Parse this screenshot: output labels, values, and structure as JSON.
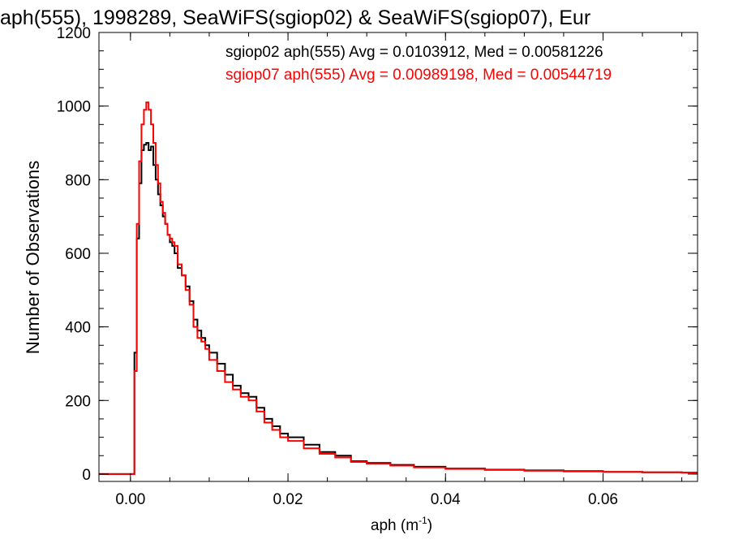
{
  "chart_data": {
    "type": "line",
    "title": "aph(555), 1998289, SeaWiFS(sgiop02) & SeaWiFS(sgiop07), Eur",
    "xlabel": "aph (m",
    "xlabel_sup": "-1",
    "xlabel_close": ")",
    "ylabel": "Number of Observations",
    "xlim": [
      -0.004,
      0.072
    ],
    "ylim": [
      -20,
      1200
    ],
    "xticks": [
      0.0,
      0.02,
      0.04,
      0.06
    ],
    "xtick_labels": [
      "0.00",
      "0.02",
      "0.04",
      "0.06"
    ],
    "yticks": [
      0,
      200,
      400,
      600,
      800,
      1000,
      1200
    ],
    "ytick_labels": [
      "0",
      "200",
      "400",
      "600",
      "800",
      "1000",
      "1200"
    ],
    "grid": false,
    "legend_position": "top-right",
    "series": [
      {
        "name": "sgiop02 aph(555) Avg = 0.0103912, Med = 0.00581226",
        "color": "#000000",
        "x": [
          -0.004,
          0.0,
          0.0005,
          0.0008,
          0.0011,
          0.0014,
          0.0017,
          0.002,
          0.0023,
          0.0026,
          0.0029,
          0.0032,
          0.0035,
          0.0038,
          0.0041,
          0.0044,
          0.0047,
          0.005,
          0.0053,
          0.0056,
          0.006,
          0.0065,
          0.007,
          0.0075,
          0.008,
          0.0085,
          0.009,
          0.0095,
          0.01,
          0.011,
          0.012,
          0.013,
          0.014,
          0.015,
          0.016,
          0.017,
          0.018,
          0.019,
          0.02,
          0.022,
          0.024,
          0.026,
          0.028,
          0.03,
          0.033,
          0.036,
          0.04,
          0.045,
          0.05,
          0.055,
          0.06,
          0.065,
          0.07,
          0.072
        ],
        "y": [
          0,
          0,
          330,
          640,
          790,
          880,
          895,
          900,
          880,
          890,
          840,
          800,
          760,
          730,
          700,
          680,
          650,
          630,
          620,
          600,
          560,
          540,
          510,
          470,
          420,
          390,
          370,
          350,
          330,
          300,
          270,
          240,
          220,
          210,
          180,
          150,
          130,
          110,
          100,
          80,
          60,
          50,
          35,
          30,
          25,
          20,
          15,
          12,
          10,
          8,
          6,
          5,
          4,
          4
        ]
      },
      {
        "name": "sgiop07 aph(555) Avg = 0.00989198, Med = 0.00544719",
        "color": "#ff0000",
        "x": [
          -0.004,
          0.0,
          0.0005,
          0.0008,
          0.0011,
          0.0014,
          0.0017,
          0.002,
          0.0023,
          0.0026,
          0.0029,
          0.0032,
          0.0035,
          0.0038,
          0.0041,
          0.0044,
          0.0047,
          0.005,
          0.0053,
          0.0056,
          0.006,
          0.0065,
          0.007,
          0.0075,
          0.008,
          0.0085,
          0.009,
          0.0095,
          0.01,
          0.011,
          0.012,
          0.013,
          0.014,
          0.015,
          0.016,
          0.017,
          0.018,
          0.019,
          0.02,
          0.022,
          0.024,
          0.026,
          0.028,
          0.03,
          0.033,
          0.036,
          0.04,
          0.045,
          0.05,
          0.055,
          0.06,
          0.065,
          0.07,
          0.072
        ],
        "y": [
          0,
          0,
          280,
          680,
          850,
          950,
          990,
          1010,
          990,
          950,
          900,
          840,
          790,
          740,
          710,
          680,
          650,
          640,
          630,
          620,
          570,
          540,
          500,
          460,
          400,
          370,
          360,
          340,
          310,
          280,
          250,
          230,
          210,
          200,
          170,
          140,
          120,
          100,
          90,
          70,
          55,
          45,
          33,
          28,
          23,
          18,
          14,
          11,
          9,
          7,
          6,
          5,
          4,
          4
        ]
      }
    ]
  }
}
